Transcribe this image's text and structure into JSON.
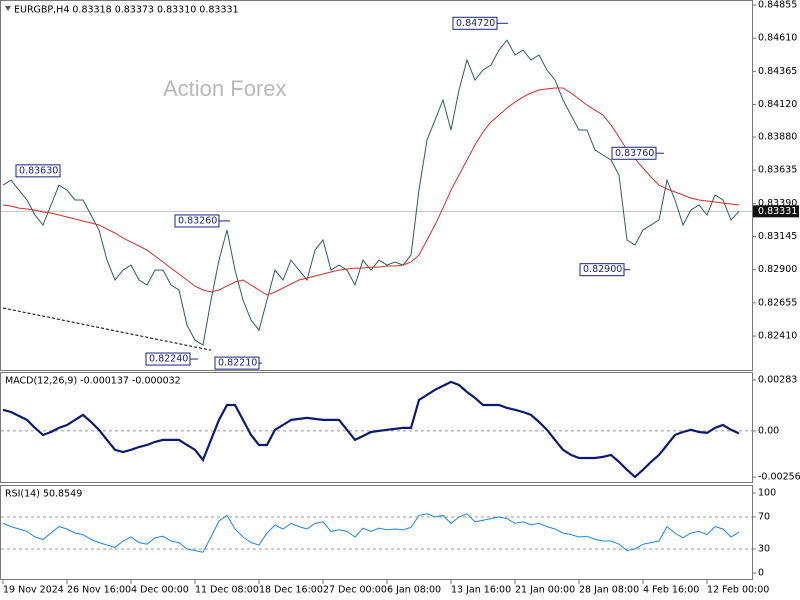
{
  "chart_data": [
    {
      "type": "line",
      "title": "EURGBP,H4  0.83318 0.83373 0.83310 0.83331",
      "watermark": "Action Forex",
      "categories": [
        "19 Nov 2024",
        null,
        null,
        null,
        null,
        null,
        null,
        null,
        "26 Nov 16:00",
        null,
        null,
        null,
        null,
        null,
        null,
        null,
        "4 Dec 00:00",
        null,
        null,
        null,
        null,
        null,
        null,
        null,
        "11 Dec 08:00",
        null,
        null,
        null,
        null,
        null,
        null,
        null,
        "18 Dec 16:00",
        null,
        null,
        null,
        null,
        null,
        null,
        null,
        "27 Dec 00:00",
        null,
        null,
        null,
        null,
        null,
        null,
        null,
        "6 Jan 08:00",
        null,
        null,
        null,
        null,
        null,
        null,
        null,
        "13 Jan 16:00",
        null,
        null,
        null,
        null,
        null,
        null,
        null,
        "21 Jan 00:00",
        null,
        null,
        null,
        null,
        null,
        null,
        null,
        "28 Jan 08:00",
        null,
        null,
        null,
        null,
        null,
        null,
        null,
        "4 Feb 16:00",
        null,
        null,
        null,
        null,
        null,
        null,
        null,
        "12 Feb 00:00",
        null,
        null,
        null,
        null
      ],
      "series": [
        {
          "color": "#2f5b62",
          "width": 1,
          "dashed": false,
          "values": [
            0.83525,
            0.83562,
            0.83488,
            0.83415,
            0.83304,
            0.8323,
            0.83378,
            0.83525,
            0.83488,
            0.83415,
            0.83415,
            0.83304,
            0.83193,
            0.82971,
            0.82824,
            0.82897,
            0.82934,
            0.82824,
            0.82787,
            0.82897,
            0.82897,
            0.82787,
            0.8275,
            0.82491,
            0.8238,
            0.82343,
            0.82676,
            0.82971,
            0.83193,
            0.82897,
            0.82676,
            0.82528,
            0.82454,
            0.82676,
            0.82897,
            0.82824,
            0.82971,
            0.82897,
            0.82824,
            0.83045,
            0.83119,
            0.82897,
            0.82934,
            0.82897,
            0.82787,
            0.82971,
            0.82897,
            0.82971,
            0.82934,
            0.82957,
            0.82934,
            0.83008,
            0.83488,
            0.83858,
            0.84005,
            0.84153,
            0.83932,
            0.84227,
            0.84449,
            0.84301,
            0.84375,
            0.84412,
            0.84523,
            0.84596,
            0.84486,
            0.84523,
            0.84449,
            0.84486,
            0.84375,
            0.84301,
            0.84153,
            0.84042,
            0.83932,
            0.83932,
            0.83784,
            0.83747,
            0.8371,
            0.83599,
            0.83119,
            0.83082,
            0.83193,
            0.8323,
            0.83267,
            0.83562,
            0.83415,
            0.8323,
            0.83341,
            0.83378,
            0.83304,
            0.83452,
            0.83415,
            0.83267,
            0.83331
          ]
        },
        {
          "color": "#d32f2f",
          "width": 1,
          "dashed": false,
          "values": [
            0.83378,
            0.8337,
            0.83355,
            0.83348,
            0.83341,
            0.83326,
            0.83319,
            0.83304,
            0.83289,
            0.83274,
            0.83259,
            0.83245,
            0.8323,
            0.832,
            0.83171,
            0.83134,
            0.83104,
            0.83075,
            0.83045,
            0.83001,
            0.82957,
            0.82912,
            0.82868,
            0.82824,
            0.82779,
            0.8275,
            0.82735,
            0.8275,
            0.82779,
            0.82809,
            0.82824,
            0.82787,
            0.8275,
            0.82713,
            0.82735,
            0.82764,
            0.82794,
            0.82824,
            0.82838,
            0.82853,
            0.82868,
            0.82883,
            0.82897,
            0.82905,
            0.82912,
            0.82912,
            0.82919,
            0.82919,
            0.82927,
            0.82927,
            0.82934,
            0.82957,
            0.83008,
            0.83119,
            0.8323,
            0.83355,
            0.83488,
            0.83599,
            0.8371,
            0.83821,
            0.83917,
            0.83991,
            0.84042,
            0.84094,
            0.84138,
            0.84175,
            0.84205,
            0.84227,
            0.84235,
            0.84242,
            0.84242,
            0.84205,
            0.84161,
            0.84116,
            0.84079,
            0.84042,
            0.83969,
            0.8388,
            0.83784,
            0.83718,
            0.83651,
            0.83584,
            0.83525,
            0.83496,
            0.83474,
            0.83452,
            0.83429,
            0.83415,
            0.83407,
            0.834,
            0.83392,
            0.83385,
            0.83378
          ]
        },
        {
          "color": "#000000",
          "width": 1,
          "dashed": true,
          "values": [
            0.82617,
            0.82605,
            0.82593,
            0.82581,
            0.82569,
            0.82557,
            0.82545,
            0.82533,
            0.82521,
            0.82509,
            0.82497,
            0.82485,
            0.82473,
            0.82461,
            0.82449,
            0.82437,
            0.82425,
            0.82413,
            0.82401,
            0.82389,
            0.82377,
            0.82365,
            0.82353,
            0.82341,
            0.82329,
            0.82317,
            0.82306,
            null,
            null,
            null,
            null,
            null,
            null,
            null,
            null,
            null,
            null,
            null,
            null,
            null,
            null,
            null,
            null,
            null,
            null,
            null,
            null,
            null,
            null,
            null,
            null,
            null,
            null,
            null,
            null,
            null,
            null,
            null,
            null,
            null,
            null,
            null,
            null,
            null,
            null,
            null,
            null,
            null,
            null,
            null,
            null,
            null,
            null,
            null,
            null,
            null,
            null,
            null,
            null,
            null,
            null,
            null,
            null,
            null,
            null,
            null,
            null,
            null,
            null,
            null,
            null,
            null,
            null
          ]
        }
      ],
      "ylim": [
        0.82159,
        0.84892
      ],
      "yticks": [
        0.84855,
        {
          "value": 0.8461,
          "label": "0.84610"
        },
        0.84365,
        {
          "value": 0.8412,
          "label": "0.84120"
        },
        {
          "value": 0.8388,
          "label": "0.83880"
        },
        0.83635,
        {
          "value": 0.8339,
          "label": "0.83390"
        },
        0.83145,
        {
          "value": 0.829,
          "label": "0.82900"
        },
        0.82655,
        {
          "value": 0.8241,
          "label": "0.82410"
        }
      ],
      "annotations": [
        {
          "value": 0.8363,
          "label": "0.83630"
        },
        {
          "value": 0.8326,
          "label": "0.83260"
        },
        {
          "value": 0.8224,
          "label": "0.82240"
        },
        {
          "value": 0.8221,
          "label": "0.82210"
        },
        {
          "value": 0.8472,
          "label": "0.84720"
        },
        {
          "value": 0.8376,
          "label": "0.83760"
        },
        {
          "value": 0.829,
          "label": "0.82900"
        }
      ],
      "last_price": {
        "value": 0.83331,
        "label": "0.83331"
      },
      "level_lines": false
    },
    {
      "type": "line",
      "title": "MACD(12,26,9) -0.000137 -0.000032",
      "series": [
        {
          "color": "#0d1b6e",
          "width": 2.2,
          "dashed": false,
          "values": [
            0.00117,
            0.00105,
            0.00083,
            0.00061,
            0.00017,
            -0.00022,
            -6e-05,
            0.00017,
            0.00033,
            0.00061,
            0.00089,
            0.0005,
            6e-05,
            -0.0005,
            -0.00105,
            -0.00117,
            -0.00105,
            -0.00089,
            -0.00078,
            -0.00061,
            -0.0005,
            -0.0005,
            -0.0005,
            -0.00078,
            -0.00105,
            -0.00161,
            -0.0005,
            0.00061,
            0.00144,
            0.00144,
            0.00061,
            -0.00022,
            -0.00078,
            -0.00078,
            6e-05,
            0.00033,
            0.00061,
            0.00067,
            0.00072,
            0.00067,
            0.00061,
            0.00061,
            0.00061,
            6e-05,
            -0.0005,
            -0.00028,
            -6e-05,
            0,
            6e-05,
            0.00011,
            0.00017,
            0.00017,
            0.00172,
            0.002,
            0.00228,
            0.0025,
            0.00272,
            0.00255,
            0.00216,
            0.00183,
            0.00144,
            0.00144,
            0.00144,
            0.00128,
            0.00117,
            0.00105,
            0.00089,
            0.0005,
            6e-05,
            -0.0005,
            -0.00105,
            -0.00133,
            -0.0015,
            -0.0015,
            -0.0015,
            -0.00144,
            -0.00133,
            -0.00172,
            -0.00216,
            -0.00255,
            -0.00216,
            -0.00172,
            -0.00133,
            -0.00078,
            -0.00022,
            -6e-05,
            6e-05,
            -6e-05,
            -0.00011,
            0.00017,
            0.00033,
            6e-05,
            -0.000137
          ]
        }
      ],
      "ylim": [
        -0.00289,
        0.00327
      ],
      "yticks": [
        0.00283,
        {
          "value": 0,
          "label": "0.00"
        },
        -0.002563
      ],
      "level_lines": true
    },
    {
      "type": "line",
      "title": "RSI(14) 50.8549",
      "series": [
        {
          "color": "#1e88e5",
          "width": 1,
          "dashed": false,
          "values": [
            62,
            58,
            55,
            52,
            45,
            42,
            50,
            58,
            55,
            50,
            48,
            42,
            38,
            35,
            32,
            40,
            45,
            38,
            36,
            44,
            46,
            40,
            38,
            30,
            28,
            26,
            45,
            65,
            72,
            55,
            45,
            38,
            35,
            50,
            60,
            55,
            62,
            58,
            55,
            62,
            64,
            52,
            54,
            52,
            45,
            56,
            52,
            56,
            54,
            55,
            54,
            57,
            72,
            74,
            70,
            72,
            62,
            70,
            74,
            64,
            66,
            68,
            70,
            68,
            62,
            64,
            60,
            62,
            58,
            55,
            50,
            48,
            45,
            46,
            42,
            40,
            40,
            36,
            28,
            30,
            36,
            38,
            40,
            58,
            50,
            44,
            50,
            52,
            48,
            58,
            55,
            45,
            50.8549
          ]
        }
      ],
      "ylim": [
        -8.75,
        110
      ],
      "yticks": [
        100,
        70,
        30,
        0
      ],
      "level_lines": true
    }
  ]
}
